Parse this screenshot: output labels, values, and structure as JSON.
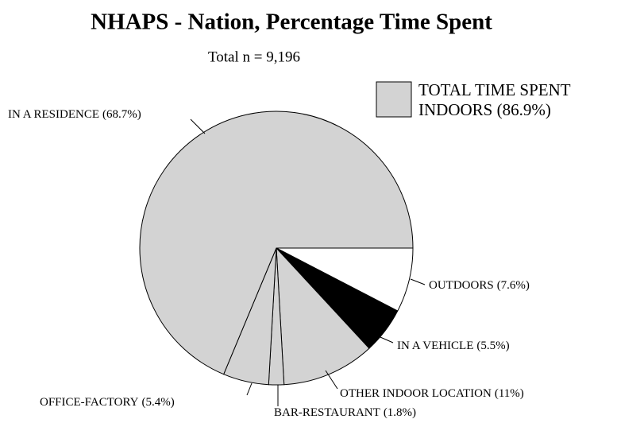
{
  "chart_data": {
    "type": "pie",
    "title": "NHAPS - Nation, Percentage Time Spent",
    "subtitle": "Total n = 9,196",
    "categories": [
      "OUTDOORS",
      "IN A VEHICLE",
      "OTHER INDOOR LOCATION",
      "BAR-RESTAURANT",
      "OFFICE-FACTORY",
      "IN A RESIDENCE"
    ],
    "values": [
      7.6,
      5.5,
      11,
      1.8,
      5.4,
      68.7
    ],
    "value_labels": [
      "(7.6%)",
      "(5.5%)",
      "(11%)",
      "(1.8%)",
      "(5.4%)",
      "(68.7%)"
    ],
    "colors": [
      "#ffffff",
      "#000000",
      "#d3d3d3",
      "#d3d3d3",
      "#d3d3d3",
      "#d3d3d3"
    ],
    "legend": {
      "lines": [
        "TOTAL TIME SPENT",
        "INDOORS (86.9%)"
      ],
      "color": "#d3d3d3"
    }
  }
}
